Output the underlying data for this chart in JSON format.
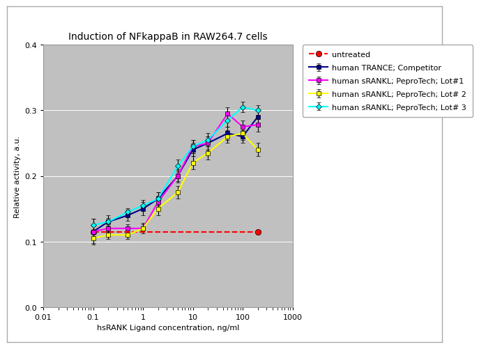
{
  "title": "Induction of NFkappaB in RAW264.7 cells",
  "xlabel": "hsRANK Ligand concentration, ng/ml",
  "ylabel": "Relative activity, a.u.",
  "xlim": [
    0.01,
    1000
  ],
  "ylim": [
    0,
    0.4
  ],
  "yticks": [
    0,
    0.1,
    0.2,
    0.3,
    0.4
  ],
  "series": [
    {
      "label": "human TRANCE; Competitor",
      "color": "#00008B",
      "marker": "s",
      "linestyle": "-",
      "linewidth": 1.5,
      "markersize": 4,
      "x": [
        0.1,
        0.2,
        0.5,
        1.0,
        2.0,
        5.0,
        10.0,
        20.0,
        50.0,
        100.0,
        200.0
      ],
      "y": [
        0.115,
        0.13,
        0.14,
        0.15,
        0.165,
        0.2,
        0.24,
        0.25,
        0.265,
        0.26,
        0.29
      ],
      "yerr": [
        0.02,
        0.01,
        0.008,
        0.01,
        0.01,
        0.008,
        0.01,
        0.01,
        0.01,
        0.01,
        0.012
      ]
    },
    {
      "label": "human sRANKL; PeproTech; Lot#1",
      "color": "#FF00FF",
      "marker": "s",
      "linestyle": "-",
      "linewidth": 1.5,
      "markersize": 4,
      "x": [
        0.1,
        0.2,
        0.5,
        1.0,
        2.0,
        5.0,
        10.0,
        20.0,
        50.0,
        100.0,
        200.0
      ],
      "y": [
        0.115,
        0.12,
        0.12,
        0.12,
        0.16,
        0.2,
        0.245,
        0.25,
        0.295,
        0.275,
        0.278
      ],
      "yerr": [
        0.008,
        0.006,
        0.006,
        0.006,
        0.01,
        0.01,
        0.01,
        0.01,
        0.01,
        0.01,
        0.01
      ]
    },
    {
      "label": "human sRANKL; PeproTech; Lot# 2",
      "color": "#FFFF00",
      "marker": "s",
      "linestyle": "-",
      "linewidth": 1.5,
      "markersize": 4,
      "x": [
        0.1,
        0.2,
        0.5,
        1.0,
        2.0,
        5.0,
        10.0,
        20.0,
        50.0,
        100.0,
        200.0
      ],
      "y": [
        0.105,
        0.11,
        0.11,
        0.12,
        0.15,
        0.175,
        0.22,
        0.235,
        0.26,
        0.265,
        0.24
      ],
      "yerr": [
        0.008,
        0.006,
        0.006,
        0.008,
        0.01,
        0.01,
        0.01,
        0.01,
        0.01,
        0.01,
        0.01
      ]
    },
    {
      "label": "human sRANKL; PeproTech; Lot# 3",
      "color": "#00FFFF",
      "marker": "D",
      "linestyle": "-",
      "linewidth": 1.5,
      "markersize": 4,
      "x": [
        0.1,
        0.2,
        0.5,
        1.0,
        2.0,
        5.0,
        10.0,
        20.0,
        50.0,
        100.0,
        200.0
      ],
      "y": [
        0.125,
        0.13,
        0.145,
        0.155,
        0.165,
        0.215,
        0.245,
        0.255,
        0.285,
        0.305,
        0.3
      ],
      "yerr": [
        0.01,
        0.006,
        0.006,
        0.008,
        0.01,
        0.01,
        0.01,
        0.01,
        0.01,
        0.008,
        0.008
      ]
    },
    {
      "label": "untreated",
      "color": "#FF0000",
      "marker": "o",
      "linestyle": "--",
      "linewidth": 1.5,
      "markersize": 6,
      "x": [
        0.1,
        200.0
      ],
      "y": [
        0.115,
        0.115
      ],
      "yerr": [
        0.0,
        0.0
      ]
    }
  ],
  "fig_bg": "#ffffff",
  "plot_bg": "#c0c0c0",
  "title_fontsize": 10,
  "label_fontsize": 8,
  "tick_fontsize": 8,
  "legend_fontsize": 8
}
